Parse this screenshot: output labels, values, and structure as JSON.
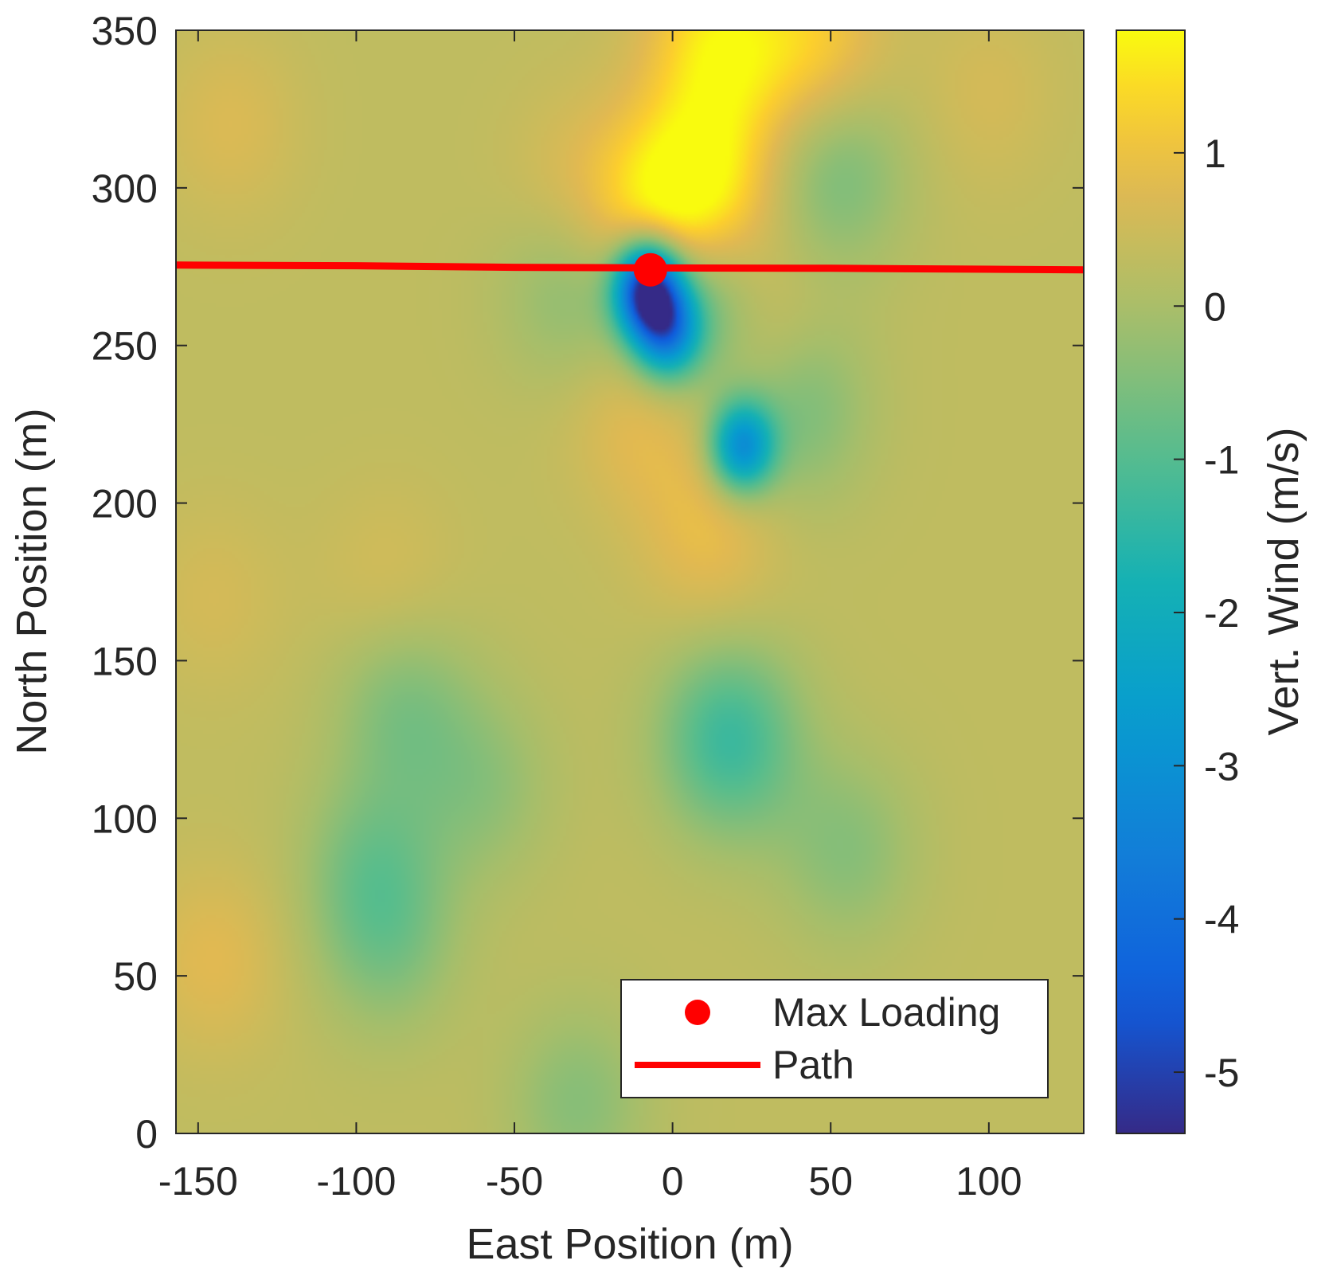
{
  "chart_data": {
    "type": "heatmap",
    "title": "",
    "xlabel": "East Position (m)",
    "ylabel": "North Position (m)",
    "xlim": [
      -157,
      130
    ],
    "ylim": [
      0,
      350
    ],
    "xticks": [
      -150,
      -100,
      -50,
      0,
      50,
      100
    ],
    "xtick_labels": [
      "-150",
      "-100",
      "-50",
      "0",
      "50",
      "100"
    ],
    "yticks": [
      0,
      50,
      100,
      150,
      200,
      250,
      300,
      350
    ],
    "ytick_labels": [
      "0",
      "50",
      "100",
      "150",
      "200",
      "250",
      "300",
      "350"
    ],
    "grid": false,
    "colormap": "parula",
    "field_background_value": 0.3,
    "field_features": [
      {
        "x": 18,
        "y": 125,
        "value": -1.3
      },
      {
        "x": 55,
        "y": 90,
        "value": -0.4
      },
      {
        "x": -85,
        "y": 135,
        "value": -0.5
      },
      {
        "x": -95,
        "y": 85,
        "value": -0.5
      },
      {
        "x": -90,
        "y": 60,
        "value": -0.4
      },
      {
        "x": -60,
        "y": 110,
        "value": -0.3
      },
      {
        "x": 52,
        "y": 305,
        "value": -0.6
      },
      {
        "x": 38,
        "y": 232,
        "value": -0.8
      },
      {
        "x": 22,
        "y": 218,
        "value": -3.0
      },
      {
        "x": -8,
        "y": 268,
        "value": -5.0
      },
      {
        "x": -2,
        "y": 255,
        "value": -3.0
      },
      {
        "x": 8,
        "y": 262,
        "value": -1.5
      },
      {
        "x": -32,
        "y": 268,
        "value": -0.4
      },
      {
        "x": 12,
        "y": 300,
        "value": 1.4
      },
      {
        "x": 15,
        "y": 345,
        "value": 1.6
      },
      {
        "x": 45,
        "y": 345,
        "value": 1.2
      },
      {
        "x": -3,
        "y": 292,
        "value": 1.6
      },
      {
        "x": 25,
        "y": 250,
        "value": 1.3
      },
      {
        "x": 12,
        "y": 190,
        "value": 0.9
      },
      {
        "x": -10,
        "y": 228,
        "value": 0.9
      },
      {
        "x": -30,
        "y": 300,
        "value": 0.7
      },
      {
        "x": -145,
        "y": 55,
        "value": 0.8
      },
      {
        "x": -140,
        "y": 320,
        "value": 0.7
      },
      {
        "x": -145,
        "y": 170,
        "value": 0.6
      },
      {
        "x": -90,
        "y": 175,
        "value": 0.6
      },
      {
        "x": 100,
        "y": 330,
        "value": 0.6
      },
      {
        "x": -30,
        "y": 10,
        "value": -0.4
      }
    ],
    "colorbar": {
      "label": "Vert. Wind (m/s)",
      "limits": [
        -5.4,
        1.8
      ],
      "ticks": [
        1,
        0,
        -1,
        -2,
        -3,
        -4,
        -5
      ],
      "tick_labels": [
        "1",
        "0",
        "-1",
        "-2",
        "-3",
        "-4",
        "-5"
      ]
    },
    "series": [
      {
        "name": "Max Loading",
        "type": "scatter",
        "color": "#ff0000",
        "x": [
          -7
        ],
        "y": [
          274
        ]
      },
      {
        "name": "Path",
        "type": "line",
        "color": "#ff0000",
        "x": [
          -157,
          -100,
          -50,
          0,
          50,
          100,
          130
        ],
        "y": [
          275.5,
          275.3,
          274.8,
          274.6,
          274.5,
          274.2,
          274
        ]
      }
    ],
    "legend_position": "bottom-right"
  }
}
